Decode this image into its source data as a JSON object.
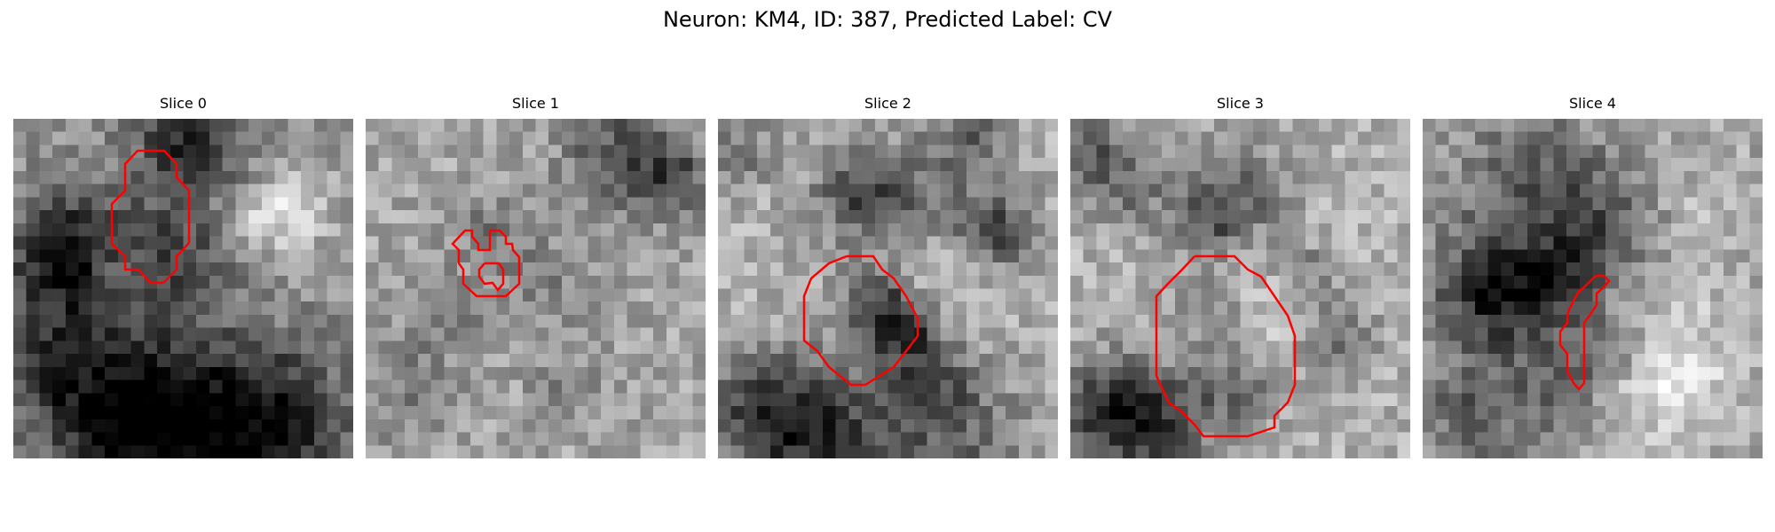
{
  "figure": {
    "title": "Neuron: KM4, ID: 387, Predicted Label: CV"
  },
  "panels": [
    {
      "title": "Slice 0",
      "contour_color": "#ff0000"
    },
    {
      "title": "Slice 1",
      "contour_color": "#ff0000"
    },
    {
      "title": "Slice 2",
      "contour_color": "#ff0000"
    },
    {
      "title": "Slice 3",
      "contour_color": "#ff0000"
    },
    {
      "title": "Slice 4",
      "contour_color": "#ff0000"
    }
  ],
  "colormap": "grayscale"
}
